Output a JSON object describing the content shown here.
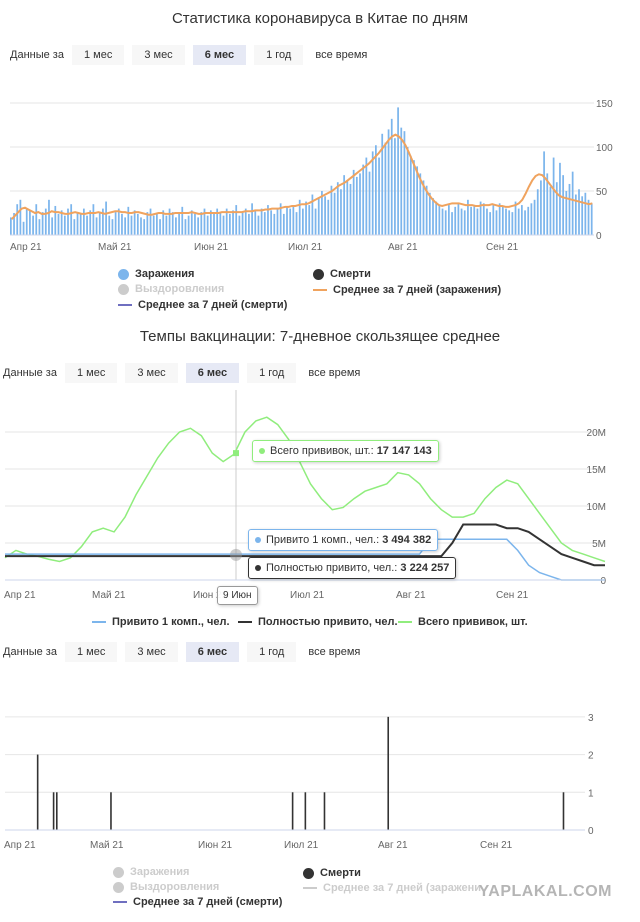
{
  "charts": [
    {
      "title": "Статистика коронавируса в Китае по дням",
      "range_label": "Данные за",
      "range_options": [
        "1 мес",
        "3 мес",
        "6 мес",
        "1 год",
        "все время"
      ],
      "range_selected": "6 мес",
      "legend": {
        "infections": "Заражения",
        "recoveries": "Выздоровления",
        "avg_deaths": "Среднее за 7 дней (смерти)",
        "deaths": "Смерти",
        "avg_infections": "Среднее за 7 дней (заражения)"
      }
    },
    {
      "title": "Темпы вакцинации: 7-дневное скользящее среднее",
      "range_label": "Данные за",
      "range_options": [
        "1 мес",
        "3 мес",
        "6 мес",
        "1 год",
        "все время"
      ],
      "range_selected": "6 мес",
      "legend": {
        "one_dose": "Привито 1 комп., чел.",
        "fully": "Полностью привито, чел.",
        "total": "Всего прививок, шт."
      },
      "tooltips": {
        "total_label": "Всего прививок, шт.:",
        "total_value": "17 147 143",
        "one_dose_label": "Привито 1 комп., чел.:",
        "one_dose_value": "3 494 382",
        "fully_label": "Полностью привито, чел.:",
        "fully_value": "3 224 257",
        "date": "9 Июн"
      }
    },
    {
      "range_label": "Данные за",
      "range_options": [
        "1 мес",
        "3 мес",
        "6 мес",
        "1 год",
        "все время"
      ],
      "range_selected": "6 мес",
      "legend": {
        "infections": "Заражения",
        "recoveries": "Выздоровления",
        "avg_deaths": "Среднее за 7 дней (смерти)",
        "deaths": "Смерти",
        "avg_infections": "Среднее за 7 дней (заражени"
      }
    }
  ],
  "watermark": "YAPLAKAL.COM",
  "colors": {
    "infections": "#7cb5ec",
    "deaths": "#333333",
    "avg_infections": "#f0a35e",
    "avg_deaths": "#6f6fc0",
    "total": "#90ed7d",
    "muted": "#cccccc"
  },
  "chart_data": [
    {
      "type": "bar",
      "x_ticks": [
        "Апр 21",
        "Май 21",
        "Июн 21",
        "Июл 21",
        "Авг 21",
        "Сен 21"
      ],
      "ylim": [
        0,
        150
      ],
      "y_ticks": [
        "0",
        "50",
        "100",
        "150"
      ],
      "series": [
        {
          "name": "Заражения",
          "type": "bar",
          "values": [
            20,
            25,
            35,
            40,
            15,
            30,
            28,
            22,
            35,
            18,
            26,
            30,
            40,
            20,
            33,
            24,
            28,
            22,
            30,
            35,
            18,
            26,
            24,
            30,
            22,
            28,
            35,
            20,
            26,
            30,
            38,
            22,
            18,
            26,
            30,
            24,
            20,
            32,
            22,
            28,
            24,
            20,
            18,
            26,
            30,
            22,
            25,
            18,
            28,
            22,
            30,
            26,
            20,
            24,
            32,
            18,
            22,
            28,
            24,
            20,
            26,
            30,
            22,
            28,
            24,
            30,
            26,
            22,
            30,
            24,
            28,
            34,
            22,
            26,
            30,
            24,
            36,
            28,
            22,
            30,
            26,
            34,
            28,
            24,
            30,
            36,
            24,
            32,
            30,
            34,
            26,
            40,
            30,
            38,
            34,
            46,
            30,
            42,
            50,
            44,
            40,
            56,
            48,
            60,
            52,
            68,
            62,
            58,
            74,
            66,
            70,
            80,
            88,
            72,
            95,
            102,
            88,
            115,
            105,
            120,
            132,
            110,
            145,
            122,
            118,
            100,
            90,
            85,
            78,
            70,
            62,
            56,
            48,
            42,
            38,
            34,
            30,
            28,
            34,
            26,
            32,
            36,
            30,
            28,
            40,
            32,
            34,
            30,
            38,
            36,
            30,
            26,
            34,
            28,
            36,
            32,
            30,
            28,
            26,
            38,
            30,
            34,
            28,
            32,
            36,
            40,
            52,
            62,
            95,
            70,
            55,
            88,
            60,
            82,
            68,
            50,
            58,
            72,
            46,
            52,
            44,
            48,
            40,
            36
          ]
        },
        {
          "name": "Среднее за 7 дней (заражения)",
          "type": "line",
          "values": [
            18,
            22,
            26,
            30,
            31,
            29,
            27,
            25,
            26,
            24,
            24,
            25,
            27,
            26,
            26,
            25,
            24,
            24,
            25,
            26,
            25,
            24,
            24,
            25,
            25,
            25,
            26,
            25,
            24,
            25,
            26,
            27,
            27,
            26,
            26,
            25,
            25,
            26,
            26,
            25,
            24,
            23,
            23,
            24,
            25,
            25,
            24,
            24,
            24,
            25,
            25,
            25,
            25,
            25,
            26,
            25,
            24,
            24,
            25,
            25,
            25,
            25,
            25,
            26,
            26,
            26,
            26,
            26,
            26,
            26,
            27,
            27,
            27,
            28,
            28,
            28,
            29,
            29,
            30,
            30,
            30,
            31,
            32,
            32,
            33,
            33,
            34,
            35,
            35,
            36,
            38,
            40,
            42,
            44,
            46,
            48,
            50,
            53,
            56,
            58,
            60,
            63,
            66,
            69,
            72,
            75,
            78,
            81,
            85,
            89,
            93,
            98,
            103,
            108,
            112,
            114,
            112,
            108,
            102,
            94,
            85,
            76,
            67,
            59,
            52,
            46,
            41,
            37,
            34,
            33,
            34,
            35,
            36,
            36,
            36,
            35,
            34,
            34,
            34,
            33,
            33,
            34,
            34,
            34,
            35,
            34,
            33,
            33,
            32,
            32,
            33,
            34,
            36,
            40,
            47,
            55,
            62,
            67,
            69,
            68,
            64,
            59,
            54,
            49,
            45,
            43,
            42,
            41,
            40,
            39,
            38,
            37,
            36,
            35,
            36
          ]
        }
      ]
    },
    {
      "type": "line",
      "x_ticks": [
        "Апр 21",
        "Май 21",
        "Июн 21",
        "Июл 21",
        "Авг 21",
        "Сен 21"
      ],
      "ylim": [
        0,
        25000000
      ],
      "y_ticks": [
        "0",
        "5M",
        "10M",
        "15M",
        "20M"
      ],
      "series": [
        {
          "name": "Всего прививок, шт.",
          "values": [
            3000000,
            4000000,
            3500000,
            3200000,
            2800000,
            2500000,
            3000000,
            4500000,
            6500000,
            7000000,
            6500000,
            8500000,
            11500000,
            14000000,
            16500000,
            18500000,
            20000000,
            20500000,
            19500000,
            17147143,
            16000000,
            17000000,
            20000000,
            21500000,
            22000000,
            21000000,
            19000000,
            16000000,
            13000000,
            11000000,
            9500000,
            9800000,
            11000000,
            12000000,
            12500000,
            13000000,
            14500000,
            14200000,
            13000000,
            11000000,
            9500000,
            8500000,
            8500000,
            9000000,
            11000000,
            12500000,
            13500000,
            13000000,
            11000000,
            9000000,
            7000000,
            5000000,
            4000000,
            3500000,
            3000000,
            2500000
          ]
        },
        {
          "name": "Привито 1 комп., чел.",
          "values": [
            3494382,
            3494382,
            3494382,
            3494382,
            3494382,
            3494382,
            3494382,
            3494382,
            3494382,
            3494382,
            3494382,
            3494382,
            3494382,
            3494382,
            3494382,
            3494382,
            3494382,
            3494382,
            3494382,
            3494382,
            3494382,
            3494382,
            3494382,
            3494382,
            3494382,
            3494382,
            3494382,
            3494382,
            3494382,
            3494382,
            3494382,
            3494382,
            3494382,
            3494382,
            3494382,
            3494382,
            3494382,
            3494382,
            3494382,
            5500000,
            5500000,
            5500000,
            5500000,
            5500000,
            5500000,
            5500000,
            5500000,
            4000000,
            2000000,
            1000000,
            500000,
            0,
            0,
            0,
            0,
            0
          ]
        },
        {
          "name": "Полностью привито, чел.",
          "values": [
            3224257,
            3224257,
            3224257,
            3224257,
            3224257,
            3224257,
            3224257,
            3224257,
            3224257,
            3224257,
            3224257,
            3224257,
            3224257,
            3224257,
            3224257,
            3224257,
            3224257,
            3224257,
            3224257,
            3224257,
            3224257,
            3224257,
            3224257,
            3224257,
            3224257,
            3224257,
            3224257,
            3224257,
            3224257,
            3224257,
            3224257,
            3224257,
            3224257,
            3224257,
            3224257,
            3224257,
            3224257,
            3224257,
            3224257,
            3224257,
            3224257,
            5000000,
            7500000,
            7500000,
            7500000,
            7500000,
            7000000,
            7000000,
            6500000,
            5500000,
            4500000,
            3500000,
            3000000,
            2500000,
            2000000,
            2000000
          ]
        }
      ]
    },
    {
      "type": "bar",
      "x_ticks": [
        "Апр 21",
        "Май 21",
        "Июн 21",
        "Июл 21",
        "Авг 21",
        "Сен 21"
      ],
      "ylim": [
        0,
        3.5
      ],
      "y_ticks": [
        "0",
        "1",
        "2",
        "3"
      ],
      "series": [
        {
          "name": "Смерти",
          "days": [
            10,
            15,
            16,
            33,
            90,
            94,
            100,
            120,
            175
          ],
          "values": [
            2,
            1,
            1,
            1,
            1,
            1,
            1,
            3,
            1
          ]
        }
      ]
    }
  ]
}
